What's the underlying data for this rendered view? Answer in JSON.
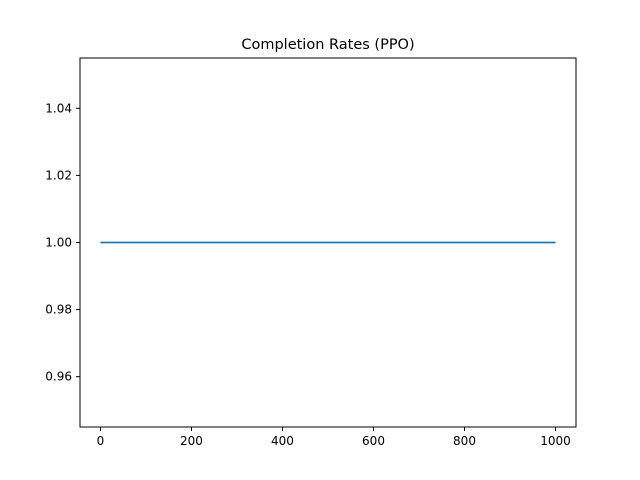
{
  "chart_data": {
    "type": "line",
    "title": "Completion Rates (PPO)",
    "xlabel": "",
    "ylabel": "",
    "xlim": [
      -45,
      1045
    ],
    "ylim": [
      0.945,
      1.055
    ],
    "x_ticks": [
      0,
      200,
      400,
      600,
      800,
      1000
    ],
    "x_tick_labels": [
      "0",
      "200",
      "400",
      "600",
      "800",
      "1000"
    ],
    "y_ticks": [
      0.96,
      0.98,
      1.0,
      1.02,
      1.04
    ],
    "y_tick_labels": [
      "0.96",
      "0.98",
      "1.00",
      "1.02",
      "1.04"
    ],
    "grid": false,
    "series": [
      {
        "color": "#1f77b4",
        "x": [
          0,
          1000
        ],
        "y": [
          1.0,
          1.0
        ]
      }
    ]
  }
}
